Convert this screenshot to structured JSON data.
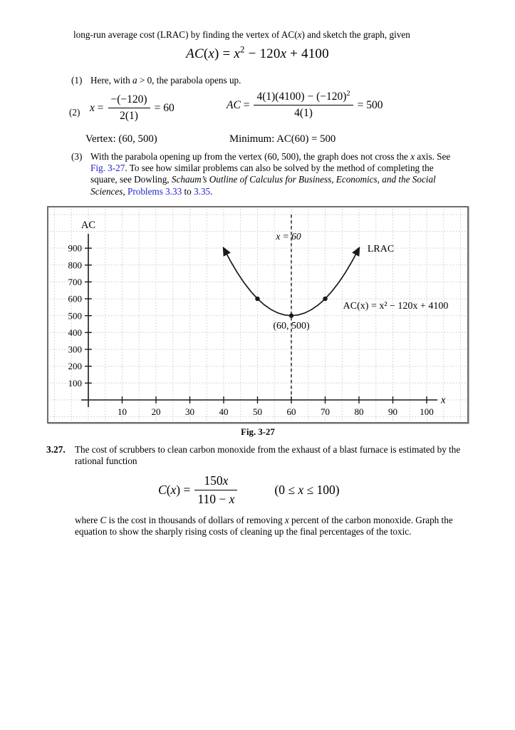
{
  "page": {
    "intro_line": [
      {
        "t": "long-run average cost (LRAC) by finding the vertex of AC("
      },
      {
        "t": "x",
        "i": true
      },
      {
        "t": ") and sketch the graph, given"
      }
    ],
    "main_equation": [
      {
        "t": "AC",
        "i": true
      },
      {
        "t": "("
      },
      {
        "t": "x",
        "i": true
      },
      {
        "t": ") = "
      },
      {
        "t": "x",
        "i": true
      },
      {
        "t": "2",
        "sup": true
      },
      {
        "t": " − 120"
      },
      {
        "t": "x",
        "i": true
      },
      {
        "t": " + 4100"
      }
    ],
    "steps": {
      "s1_label": "(1)",
      "s1_text": [
        {
          "t": "Here, with "
        },
        {
          "t": "a",
          "i": true
        },
        {
          "t": " > 0, the parabola opens up."
        }
      ],
      "s2_label": "(2)",
      "eq_x": {
        "pre": [
          {
            "t": "x",
            "i": true
          },
          {
            "t": " = "
          }
        ],
        "num": [
          {
            "t": "−(−120)"
          }
        ],
        "den": [
          {
            "t": "2(1)"
          }
        ],
        "post": [
          {
            "t": " = 60"
          }
        ]
      },
      "eq_ac": {
        "pre": [
          {
            "t": "AC",
            "i": true
          },
          {
            "t": " = "
          }
        ],
        "num": [
          {
            "t": "4(1)(4100) − (−120)"
          },
          {
            "t": "2",
            "sup": true
          }
        ],
        "den": [
          {
            "t": "4(1)"
          }
        ],
        "post": [
          {
            "t": " = 500"
          }
        ]
      },
      "vertex_line": [
        {
          "t": "Vertex: (60, 500)"
        }
      ],
      "minimum_line": [
        {
          "t": "Minimum: AC(60) = 500"
        }
      ],
      "s3_label": "(3)",
      "s3_text": [
        {
          "t": "With the parabola opening up from the vertex (60, 500), the graph does not cross the "
        },
        {
          "t": "x",
          "i": true
        },
        {
          "t": " axis. See "
        },
        {
          "t": "Fig. 3-27",
          "link": true
        },
        {
          "t": ". To see how similar problems can also be solved by the method of completing the square, see Dowling, "
        },
        {
          "t": "Schaum’s Outline of Calculus for Business, Economics, and the Social Sciences",
          "i": true
        },
        {
          "t": ", "
        },
        {
          "t": "Problems 3.33",
          "link": true
        },
        {
          "t": " to "
        },
        {
          "t": "3.35",
          "link": true
        },
        {
          "t": "."
        }
      ]
    },
    "figure": {
      "caption": "Fig. 3-27"
    },
    "problem": {
      "number": "3.27.",
      "text": [
        {
          "t": "The cost of scrubbers to clean carbon monoxide from the exhaust of a blast furnace is estimated by the rational function"
        }
      ],
      "eq": {
        "pre": [
          {
            "t": "C",
            "i": true
          },
          {
            "t": "("
          },
          {
            "t": "x",
            "i": true
          },
          {
            "t": ") = "
          }
        ],
        "num": [
          {
            "t": "150"
          },
          {
            "t": "x",
            "i": true
          }
        ],
        "den": [
          {
            "t": "110 − "
          },
          {
            "t": "x",
            "i": true
          }
        ],
        "domain": [
          {
            "t": "(0 ≤ "
          },
          {
            "t": "x",
            "i": true
          },
          {
            "t": " ≤ 100)"
          }
        ]
      },
      "footer": [
        {
          "t": "where "
        },
        {
          "t": "C",
          "i": true
        },
        {
          "t": " is the cost in thousands of dollars of removing "
        },
        {
          "t": "x",
          "i": true
        },
        {
          "t": " percent of the carbon monoxide. Graph the equation to show the sharply rising costs of cleaning up the final percentages of the toxic."
        }
      ]
    }
  },
  "chart_data": {
    "type": "line",
    "title": "Fig. 3-27",
    "xlabel": "x",
    "ylabel": "AC",
    "xlim": [
      0,
      103
    ],
    "ylim": [
      0,
      960
    ],
    "x_ticks": [
      10,
      20,
      30,
      40,
      50,
      60,
      70,
      80,
      90,
      100
    ],
    "y_ticks": [
      100,
      200,
      300,
      400,
      500,
      600,
      700,
      800,
      900
    ],
    "grid": true,
    "legend_position": "inline-annotation",
    "series": [
      {
        "name": "LRAC",
        "equation": "AC(x) = x² − 120x + 4100",
        "points": [
          [
            40,
            900
          ],
          [
            42,
            824
          ],
          [
            44,
            756
          ],
          [
            46,
            696
          ],
          [
            48,
            644
          ],
          [
            50,
            600
          ],
          [
            52,
            564
          ],
          [
            54,
            536
          ],
          [
            56,
            516
          ],
          [
            58,
            504
          ],
          [
            60,
            500
          ],
          [
            62,
            504
          ],
          [
            64,
            516
          ],
          [
            66,
            536
          ],
          [
            68,
            564
          ],
          [
            70,
            600
          ],
          [
            72,
            644
          ],
          [
            74,
            696
          ],
          [
            76,
            756
          ],
          [
            78,
            824
          ],
          [
            80,
            900
          ]
        ]
      }
    ],
    "marked_points": [
      [
        50,
        600
      ],
      [
        60,
        500
      ],
      [
        70,
        600
      ]
    ],
    "vertex": {
      "x": 60,
      "y": 500,
      "label": "(60, 500)"
    },
    "vline": {
      "x": 60,
      "label": "x = 60"
    },
    "annotations": [
      {
        "text": "LRAC",
        "x": 82.5,
        "y": 880,
        "align": "start",
        "size": 14.5
      },
      {
        "text": "AC(x) = x² − 120x + 4100",
        "x": 75.3,
        "y": 541,
        "align": "start",
        "size": 14
      },
      {
        "text": "(60, 500)",
        "x": 60,
        "y": 423,
        "align": "middle",
        "size": 14
      }
    ]
  }
}
